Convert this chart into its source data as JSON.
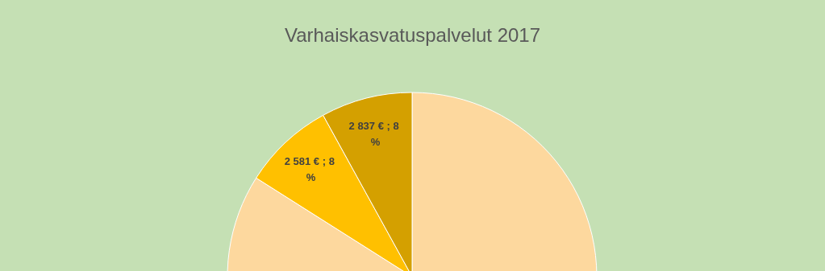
{
  "chart_data": {
    "type": "pie",
    "title": "Varhaiskasvatuspalvelut 2017",
    "categories": [
      null,
      null,
      null,
      null
    ],
    "values": [
      57,
      27,
      8,
      8
    ],
    "colors": [
      "#fdd89e",
      "#fdd89e",
      "#ffc000",
      "#d4a000"
    ],
    "value_labels": [
      null,
      null,
      "2 581 € ; 8 %",
      "2 837 € ; 8 %"
    ]
  }
}
